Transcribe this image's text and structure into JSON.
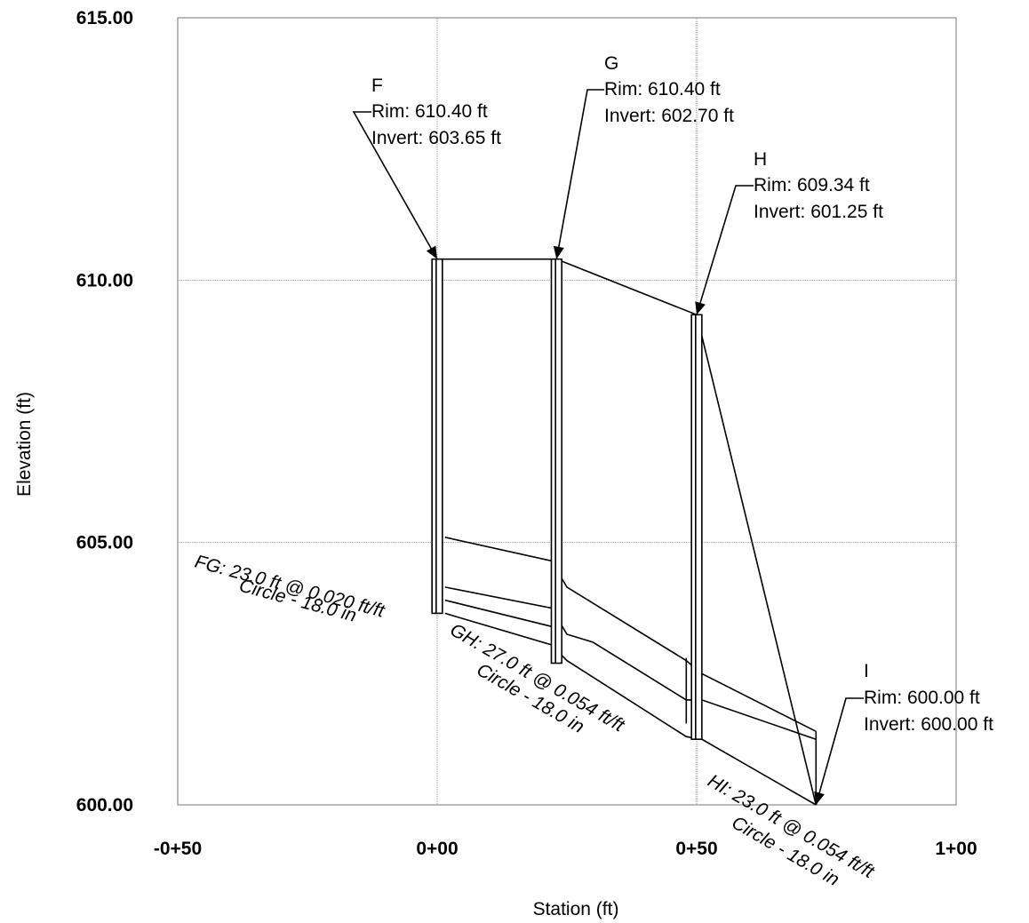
{
  "chart_data": {
    "type": "line",
    "xlabel": "Station (ft)",
    "ylabel": "Elevation (ft)",
    "xlim": [
      -50,
      100
    ],
    "ylim": [
      600,
      615
    ],
    "x_ticks": [
      -50,
      0,
      50,
      100
    ],
    "x_tick_labels": [
      "-0+50",
      "0+00",
      "0+50",
      "1+00"
    ],
    "y_ticks": [
      600,
      605,
      610,
      615
    ],
    "y_tick_labels": [
      "600.00",
      "605.00",
      "610.00",
      "615.00"
    ],
    "grid": true,
    "nodes": [
      {
        "id": "F",
        "station": 0.0,
        "rim_text": "Rim: 610.40 ft",
        "invert_text": "Invert: 603.65 ft",
        "rim": 610.4,
        "invert": 603.65
      },
      {
        "id": "G",
        "station": 23.0,
        "rim_text": "Rim: 610.40 ft",
        "invert_text": "Invert: 602.70 ft",
        "rim": 610.4,
        "invert": 602.7
      },
      {
        "id": "H",
        "station": 50.0,
        "rim_text": "Rim: 609.34 ft",
        "invert_text": "Invert: 601.25 ft",
        "rim": 609.34,
        "invert": 601.25
      },
      {
        "id": "I",
        "station": 73.0,
        "rim_text": "Rim: 600.00 ft",
        "invert_text": "Invert: 600.00 ft",
        "rim": 600.0,
        "invert": 600.0
      }
    ],
    "pipes": [
      {
        "id": "FG",
        "line1": "FG: 23.0 ft @ 0.020 ft/ft",
        "line2": "Circle - 18.0 in",
        "length": 23.0,
        "slope": 0.02,
        "diameter_in": 18.0
      },
      {
        "id": "GH",
        "line1": "GH: 27.0 ft @ 0.054 ft/ft",
        "line2": "Circle - 18.0 in",
        "length": 27.0,
        "slope": 0.054,
        "diameter_in": 18.0
      },
      {
        "id": "HI",
        "line1": "HI: 23.0 ft @ 0.054 ft/ft",
        "line2": "Circle - 18.0 in",
        "length": 23.0,
        "slope": 0.054,
        "diameter_in": 18.0
      }
    ],
    "profile_lines": [
      {
        "name": "ground",
        "points": [
          [
            0,
            610.4
          ],
          [
            23,
            610.4
          ],
          [
            50,
            609.34
          ],
          [
            73,
            600.0
          ]
        ]
      },
      {
        "name": "hgl-upper",
        "points": [
          [
            1.5,
            605.1
          ],
          [
            22,
            604.65
          ],
          [
            25,
            604.15
          ],
          [
            48,
            602.75
          ],
          [
            51,
            602.5
          ],
          [
            73,
            601.4
          ]
        ]
      },
      {
        "name": "egl",
        "points": [
          [
            1.5,
            604.15
          ],
          [
            22,
            603.75
          ],
          [
            25,
            603.25
          ],
          [
            30,
            603.1
          ],
          [
            48,
            602.0
          ],
          [
            51,
            602.0
          ],
          [
            73,
            601.25
          ]
        ]
      },
      {
        "name": "pipe-crown",
        "points": [
          [
            1.5,
            603.9
          ],
          [
            22,
            603.4
          ]
        ]
      },
      {
        "name": "pipe-invert",
        "points": [
          [
            1.5,
            603.65
          ],
          [
            22,
            603.05
          ],
          [
            25,
            602.75
          ],
          [
            48,
            601.3
          ],
          [
            51,
            601.25
          ],
          [
            73,
            600.0
          ]
        ]
      }
    ],
    "wall_lines": [
      {
        "name": "gh-end-wall",
        "points": [
          [
            48,
            602.8
          ],
          [
            48,
            601.55
          ]
        ]
      },
      {
        "name": "hi-end-wall",
        "points": [
          [
            73,
            601.4
          ],
          [
            73,
            600.0
          ]
        ]
      }
    ]
  }
}
